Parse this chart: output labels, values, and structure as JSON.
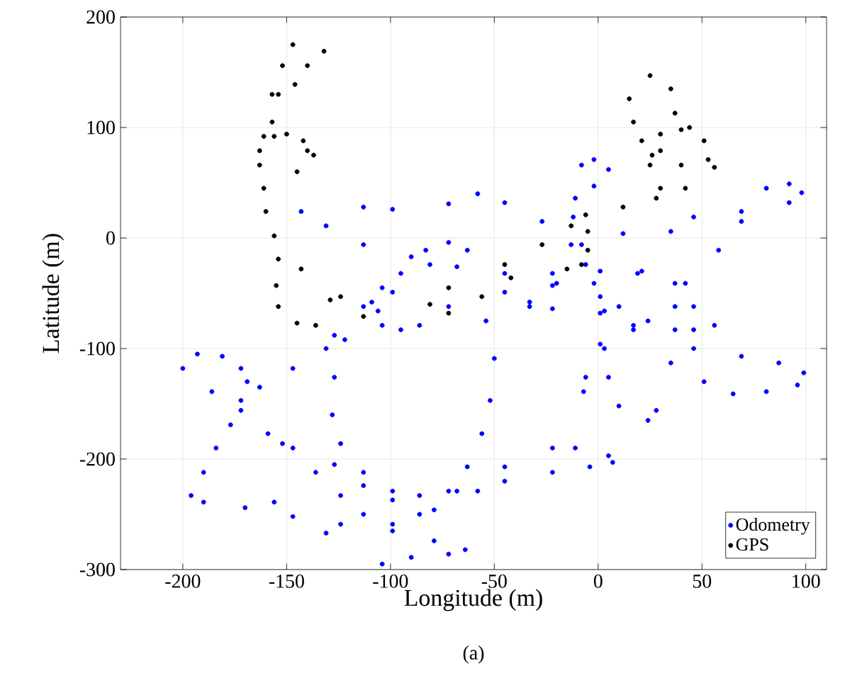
{
  "chart_data": {
    "type": "scatter",
    "xlabel": "Longitude (m)",
    "ylabel": "Latitude (m)",
    "annotations": [
      "(a)"
    ],
    "xlim": [
      -230,
      110
    ],
    "ylim": [
      -300,
      200
    ],
    "xticks": [
      -200,
      -150,
      -100,
      -50,
      0,
      50,
      100
    ],
    "yticks": [
      -300,
      -200,
      -100,
      0,
      100,
      200
    ],
    "grid": true,
    "legend": "bottom right",
    "marker": "circle",
    "series": [
      {
        "name": "Odometry",
        "color": "#0000ff",
        "x": [
          -143,
          -113,
          -99,
          -72,
          -58,
          -45,
          -27,
          -13,
          -6,
          -131,
          -113,
          -90,
          -68,
          -45,
          -22,
          1,
          21,
          37,
          46,
          56,
          46,
          24,
          1,
          -22,
          -33,
          -200,
          -193,
          -181,
          -172,
          -169,
          -172,
          -177,
          -184,
          -190,
          -196,
          -190,
          -170,
          -147,
          -124,
          -99,
          -79,
          -64,
          -72,
          -90,
          -156,
          -131,
          -104,
          -186,
          -172,
          -159,
          -147,
          -127,
          -113,
          -99,
          -86,
          -152,
          -136,
          -124,
          -113,
          -99,
          -79,
          -163,
          -147,
          -131,
          -127,
          -113,
          -104,
          -122,
          -127,
          -128,
          -124,
          -113,
          -99,
          -86,
          -72,
          -63,
          -56,
          -52,
          -50,
          -54,
          -45,
          -33,
          -20,
          -109,
          -95,
          -83,
          -72,
          -63,
          -81,
          -99,
          -106,
          -104,
          -95,
          -86,
          -72,
          -8,
          -2,
          5,
          -2,
          -11,
          -12,
          -8,
          -2,
          3,
          1,
          -6,
          -7,
          10,
          24,
          28,
          5,
          3,
          17,
          42,
          58,
          69,
          81,
          92,
          98,
          92,
          69,
          46,
          35,
          12,
          19,
          17,
          35,
          51,
          65,
          81,
          96,
          99,
          87,
          69,
          46,
          37,
          37,
          -68,
          -45,
          -22,
          -11,
          5,
          7,
          -4,
          -22,
          -45,
          -58,
          -22,
          1,
          10
        ],
        "values": [
          24,
          28,
          26,
          31,
          40,
          32,
          15,
          -6,
          -24,
          11,
          -6,
          -17,
          -26,
          -32,
          -32,
          -30,
          -30,
          -41,
          -62,
          -79,
          -83,
          -75,
          -68,
          -64,
          -58,
          -118,
          -105,
          -107,
          -118,
          -130,
          -147,
          -169,
          -190,
          -212,
          -233,
          -239,
          -244,
          -252,
          -259,
          -265,
          -274,
          -282,
          -286,
          -289,
          -239,
          -267,
          -295,
          -139,
          -156,
          -177,
          -190,
          -205,
          -224,
          -237,
          -250,
          -186,
          -212,
          -233,
          -250,
          -259,
          -246,
          -135,
          -118,
          -100,
          -88,
          -62,
          -45,
          -92,
          -126,
          -160,
          -186,
          -212,
          -229,
          -233,
          -229,
          -207,
          -177,
          -147,
          -109,
          -75,
          -49,
          -62,
          -41,
          -58,
          -32,
          -11,
          -4,
          -11,
          -24,
          -49,
          -66,
          -79,
          -83,
          -79,
          -62,
          66,
          71,
          62,
          47,
          36,
          19,
          -6,
          -41,
          -66,
          -96,
          -126,
          -139,
          -152,
          -165,
          -156,
          -126,
          -100,
          -79,
          -41,
          -11,
          15,
          45,
          49,
          41,
          32,
          24,
          19,
          6,
          4,
          -32,
          -83,
          -113,
          -130,
          -141,
          -139,
          -133,
          -122,
          -113,
          -107,
          -100,
          -83,
          -62,
          -229,
          -207,
          -190,
          -190,
          -197,
          -203,
          -207,
          -212,
          -220,
          -229,
          -43,
          -53,
          -62
        ]
      },
      {
        "name": "GPS",
        "color": "#000000",
        "x": [
          -147,
          -152,
          -157,
          -157,
          -156,
          -163,
          -132,
          -140,
          -146,
          -154,
          -161,
          -150,
          -142,
          -140,
          -137,
          -145,
          -163,
          -161,
          -160,
          -156,
          -154,
          -143,
          -129,
          -124,
          -113,
          -155,
          -154,
          -145,
          -136,
          -72,
          -45,
          -27,
          -13,
          -6,
          12,
          28,
          42,
          56,
          -81,
          -72,
          -56,
          -42,
          -5,
          -5,
          -8,
          -15,
          15,
          17,
          21,
          25,
          35,
          37,
          44,
          51,
          53,
          26,
          30,
          40,
          30,
          40,
          30,
          25
        ],
        "values": [
          175,
          156,
          130,
          105,
          92,
          79,
          169,
          156,
          139,
          130,
          92,
          94,
          88,
          79,
          75,
          60,
          66,
          45,
          24,
          2,
          -19,
          -28,
          -56,
          -53,
          -71,
          -43,
          -62,
          -77,
          -79,
          -45,
          -24,
          -6,
          11,
          21,
          28,
          36,
          45,
          64,
          -60,
          -68,
          -53,
          -36,
          6,
          -11,
          -24,
          -28,
          126,
          105,
          88,
          66,
          135,
          113,
          100,
          88,
          71,
          75,
          94,
          98,
          79,
          66,
          45,
          147
        ]
      }
    ]
  }
}
